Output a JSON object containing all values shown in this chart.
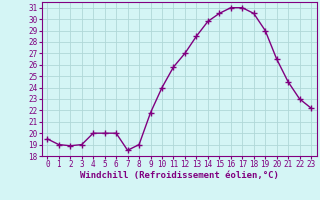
{
  "x": [
    0,
    1,
    2,
    3,
    4,
    5,
    6,
    7,
    8,
    9,
    10,
    11,
    12,
    13,
    14,
    15,
    16,
    17,
    18,
    19,
    20,
    21,
    22,
    23
  ],
  "y": [
    19.5,
    19.0,
    18.9,
    19.0,
    20.0,
    20.0,
    20.0,
    18.5,
    19.0,
    21.8,
    24.0,
    25.8,
    27.0,
    28.5,
    29.8,
    30.5,
    31.0,
    31.0,
    30.5,
    29.0,
    26.5,
    24.5,
    23.0,
    22.2
  ],
  "line_color": "#800080",
  "marker": "+",
  "markersize": 4,
  "linewidth": 1.0,
  "bg_color": "#d4f5f5",
  "grid_color": "#b0d8d8",
  "xlabel": "Windchill (Refroidissement éolien,°C)",
  "xlim": [
    -0.5,
    23.5
  ],
  "ylim": [
    18,
    31.5
  ],
  "yticks": [
    18,
    19,
    20,
    21,
    22,
    23,
    24,
    25,
    26,
    27,
    28,
    29,
    30,
    31
  ],
  "xticks": [
    0,
    1,
    2,
    3,
    4,
    5,
    6,
    7,
    8,
    9,
    10,
    11,
    12,
    13,
    14,
    15,
    16,
    17,
    18,
    19,
    20,
    21,
    22,
    23
  ],
  "xlabel_fontsize": 6.5,
  "tick_fontsize": 5.5,
  "line_color_hex": "#800080",
  "spine_color": "#800080"
}
